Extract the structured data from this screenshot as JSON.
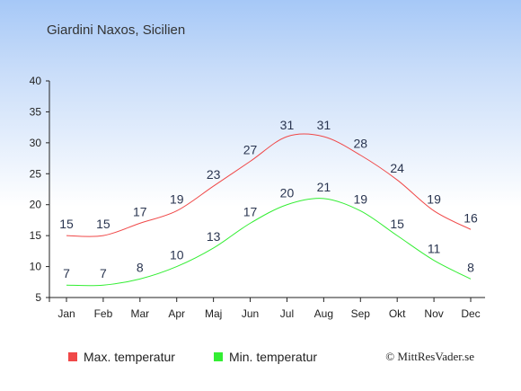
{
  "chart_data": {
    "type": "line",
    "title": "Giardini Naxos, Sicilien",
    "categories": [
      "Jan",
      "Feb",
      "Mar",
      "Apr",
      "Maj",
      "Jun",
      "Jul",
      "Aug",
      "Sep",
      "Okt",
      "Nov",
      "Dec"
    ],
    "series": [
      {
        "name": "Max. temperatur",
        "color": "#f04848",
        "values": [
          15,
          15,
          17,
          19,
          23,
          27,
          31,
          31,
          28,
          24,
          19,
          16
        ]
      },
      {
        "name": "Min. temperatur",
        "color": "#33ee33",
        "values": [
          7,
          7,
          8,
          10,
          13,
          17,
          20,
          21,
          19,
          15,
          11,
          8
        ]
      }
    ],
    "ylim": [
      5,
      40
    ],
    "yticks": [
      5,
      10,
      15,
      20,
      25,
      30,
      35,
      40
    ],
    "grid": false,
    "legend_position": "bottom"
  },
  "credit": "© MittResVader.se"
}
